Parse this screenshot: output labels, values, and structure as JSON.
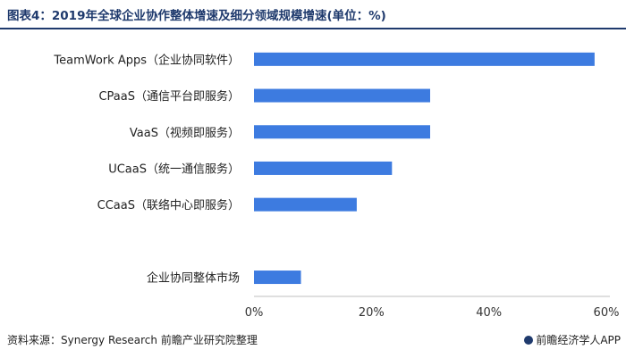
{
  "header": {
    "title": "图表4：2019年全球企业协作整体增速及细分领域规模增速(单位：%)"
  },
  "footer": {
    "source": "资料来源：Synergy Research 前瞻产业研究院整理",
    "brand": "前瞻经济学人APP"
  },
  "colors": {
    "bar": "#3d7be0",
    "title": "#1f3a6d",
    "axis": "#bfbfbf"
  },
  "chart_data": {
    "type": "bar",
    "orientation": "horizontal",
    "title": "图表4：2019年全球企业协作整体增速及细分领域规模增速(单位：%)",
    "categories": [
      "TeamWork Apps（企业协同软件）",
      "CPaaS（通信平台即服务）",
      "VaaS（视频即服务）",
      "UCaaS（统一通信服务）",
      "CCaaS（联络中心即服务）",
      "",
      "企业协同整体市场"
    ],
    "values": [
      58,
      30,
      30,
      23.5,
      17.5,
      null,
      8
    ],
    "xlim": [
      0,
      60
    ],
    "xticks": [
      0,
      20,
      40,
      60
    ],
    "xtick_labels": [
      "0%",
      "20%",
      "40%",
      "60%"
    ],
    "grid": false,
    "legend": "none"
  }
}
